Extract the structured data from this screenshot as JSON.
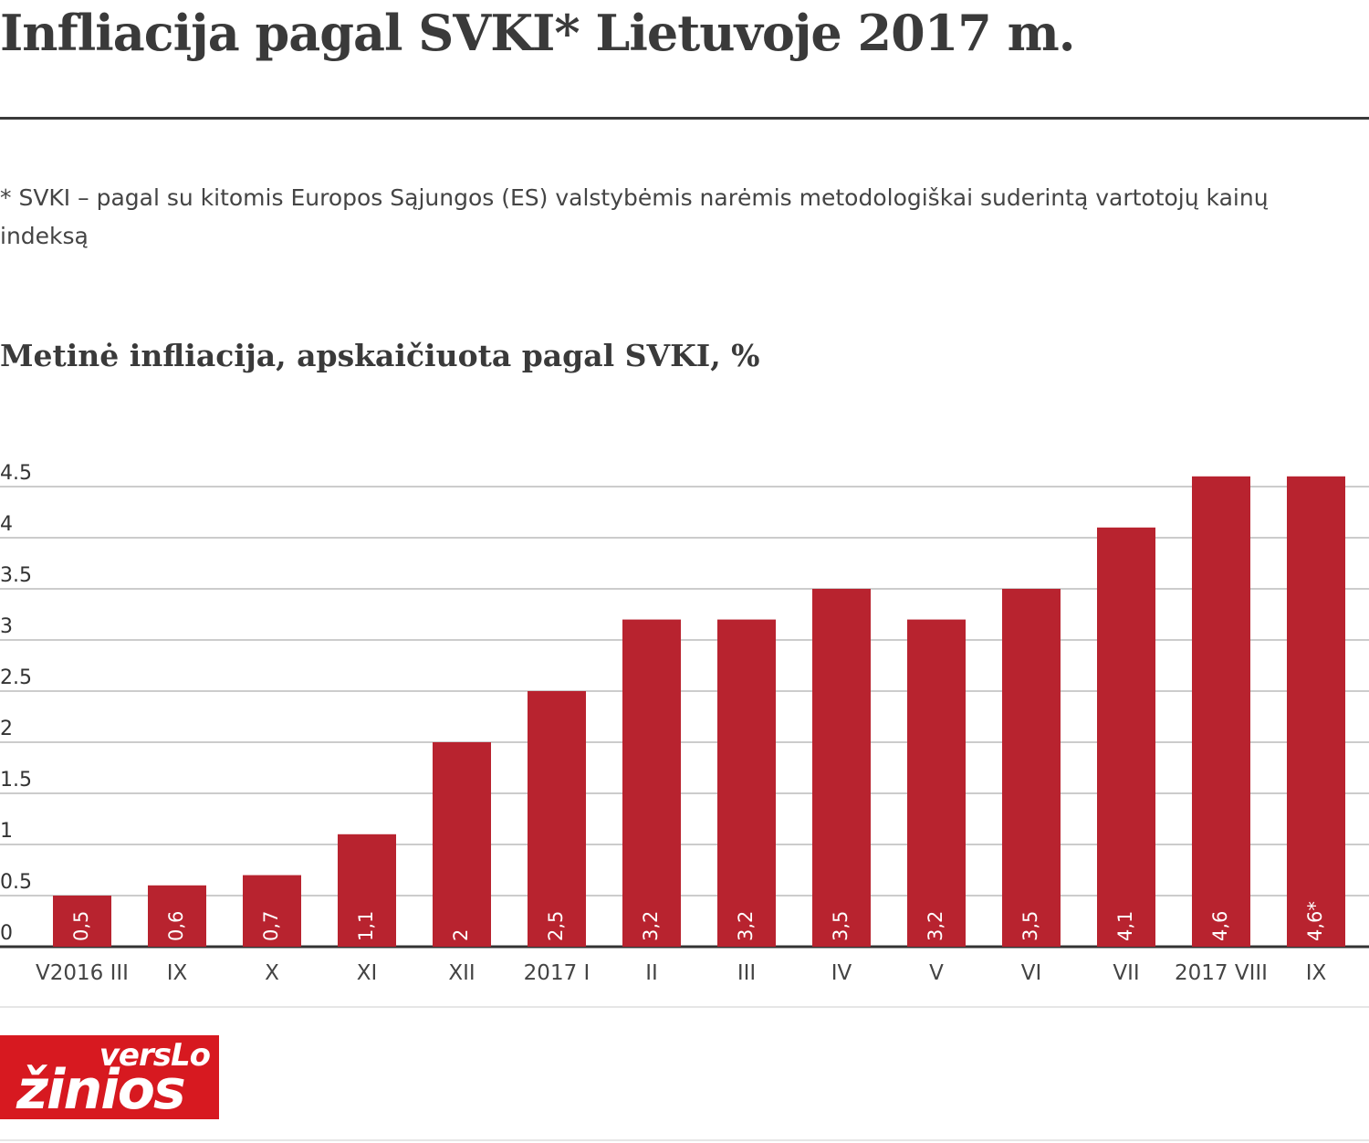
{
  "title": "Infliacija pagal SVKI* Lietuvoje 2017 m.",
  "footnote": "* SVKI –  pagal su kitomis Europos Sąjungos (ES) valstybėmis narėmis metodologiškai suderintą vartotojų kainų indeksą",
  "chart_title": "Metinė infliacija, apskaičiuota pagal SVKI, %",
  "logo": {
    "top": "versLo",
    "bottom": "žinios"
  },
  "colors": {
    "bar": "#b8232f",
    "grid": "#cccccc",
    "axis": "#333333"
  },
  "chart_data": {
    "type": "bar",
    "categories": [
      "V2016 III",
      "IX",
      "X",
      "XI",
      "XII",
      "2017 I",
      "II",
      "III",
      "IV",
      "V",
      "VI",
      "VII",
      "2017 VIII",
      "IX"
    ],
    "values": [
      0.5,
      0.6,
      0.7,
      1.1,
      2,
      2.5,
      3.2,
      3.2,
      3.5,
      3.2,
      3.5,
      4.1,
      4.6,
      4.6
    ],
    "data_labels": [
      "0,5",
      "0,6",
      "0,7",
      "1,1",
      "2",
      "2,5",
      "3,2",
      "3,2",
      "3,5",
      "3,2",
      "3,5",
      "4,1",
      "4,6",
      "4,6*"
    ],
    "yticks": [
      "0",
      "0.5",
      "1",
      "1.5",
      "2",
      "2.5",
      "3",
      "3.5",
      "4",
      "4.5"
    ],
    "ylim": [
      0,
      4.5
    ],
    "grid": true,
    "legend": "none"
  }
}
